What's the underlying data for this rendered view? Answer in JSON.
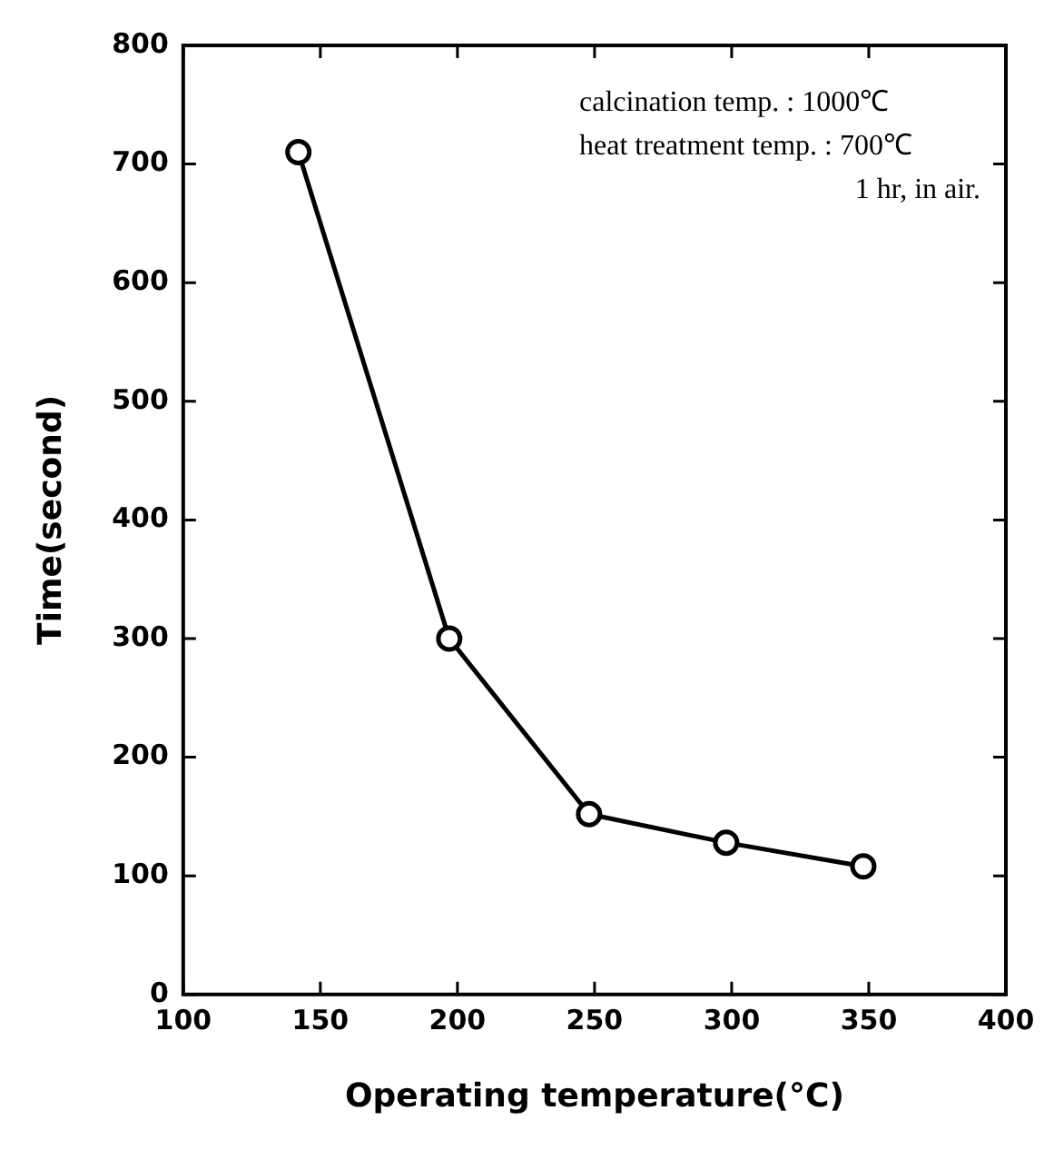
{
  "chart_data": {
    "type": "line",
    "xlabel": "Operating temperature(°C)",
    "ylabel": "Time(second)",
    "x": [
      142,
      197,
      248,
      298,
      348
    ],
    "series": [
      {
        "color": "#000000",
        "values": [
          710,
          300,
          152,
          128,
          108
        ]
      }
    ],
    "xlim": [
      100,
      400
    ],
    "xticks": [
      100,
      150,
      200,
      250,
      300,
      350,
      400
    ],
    "ylim": [
      0,
      800
    ],
    "yticks": [
      0,
      100,
      200,
      300,
      400,
      500,
      600,
      700,
      800
    ],
    "grid": false,
    "legend": false,
    "marker": "circle",
    "line_style": "solid",
    "annotations": [
      "calcination temp. : 1000℃",
      "heat treatment temp. : 700℃",
      "1 hr, in air."
    ]
  }
}
